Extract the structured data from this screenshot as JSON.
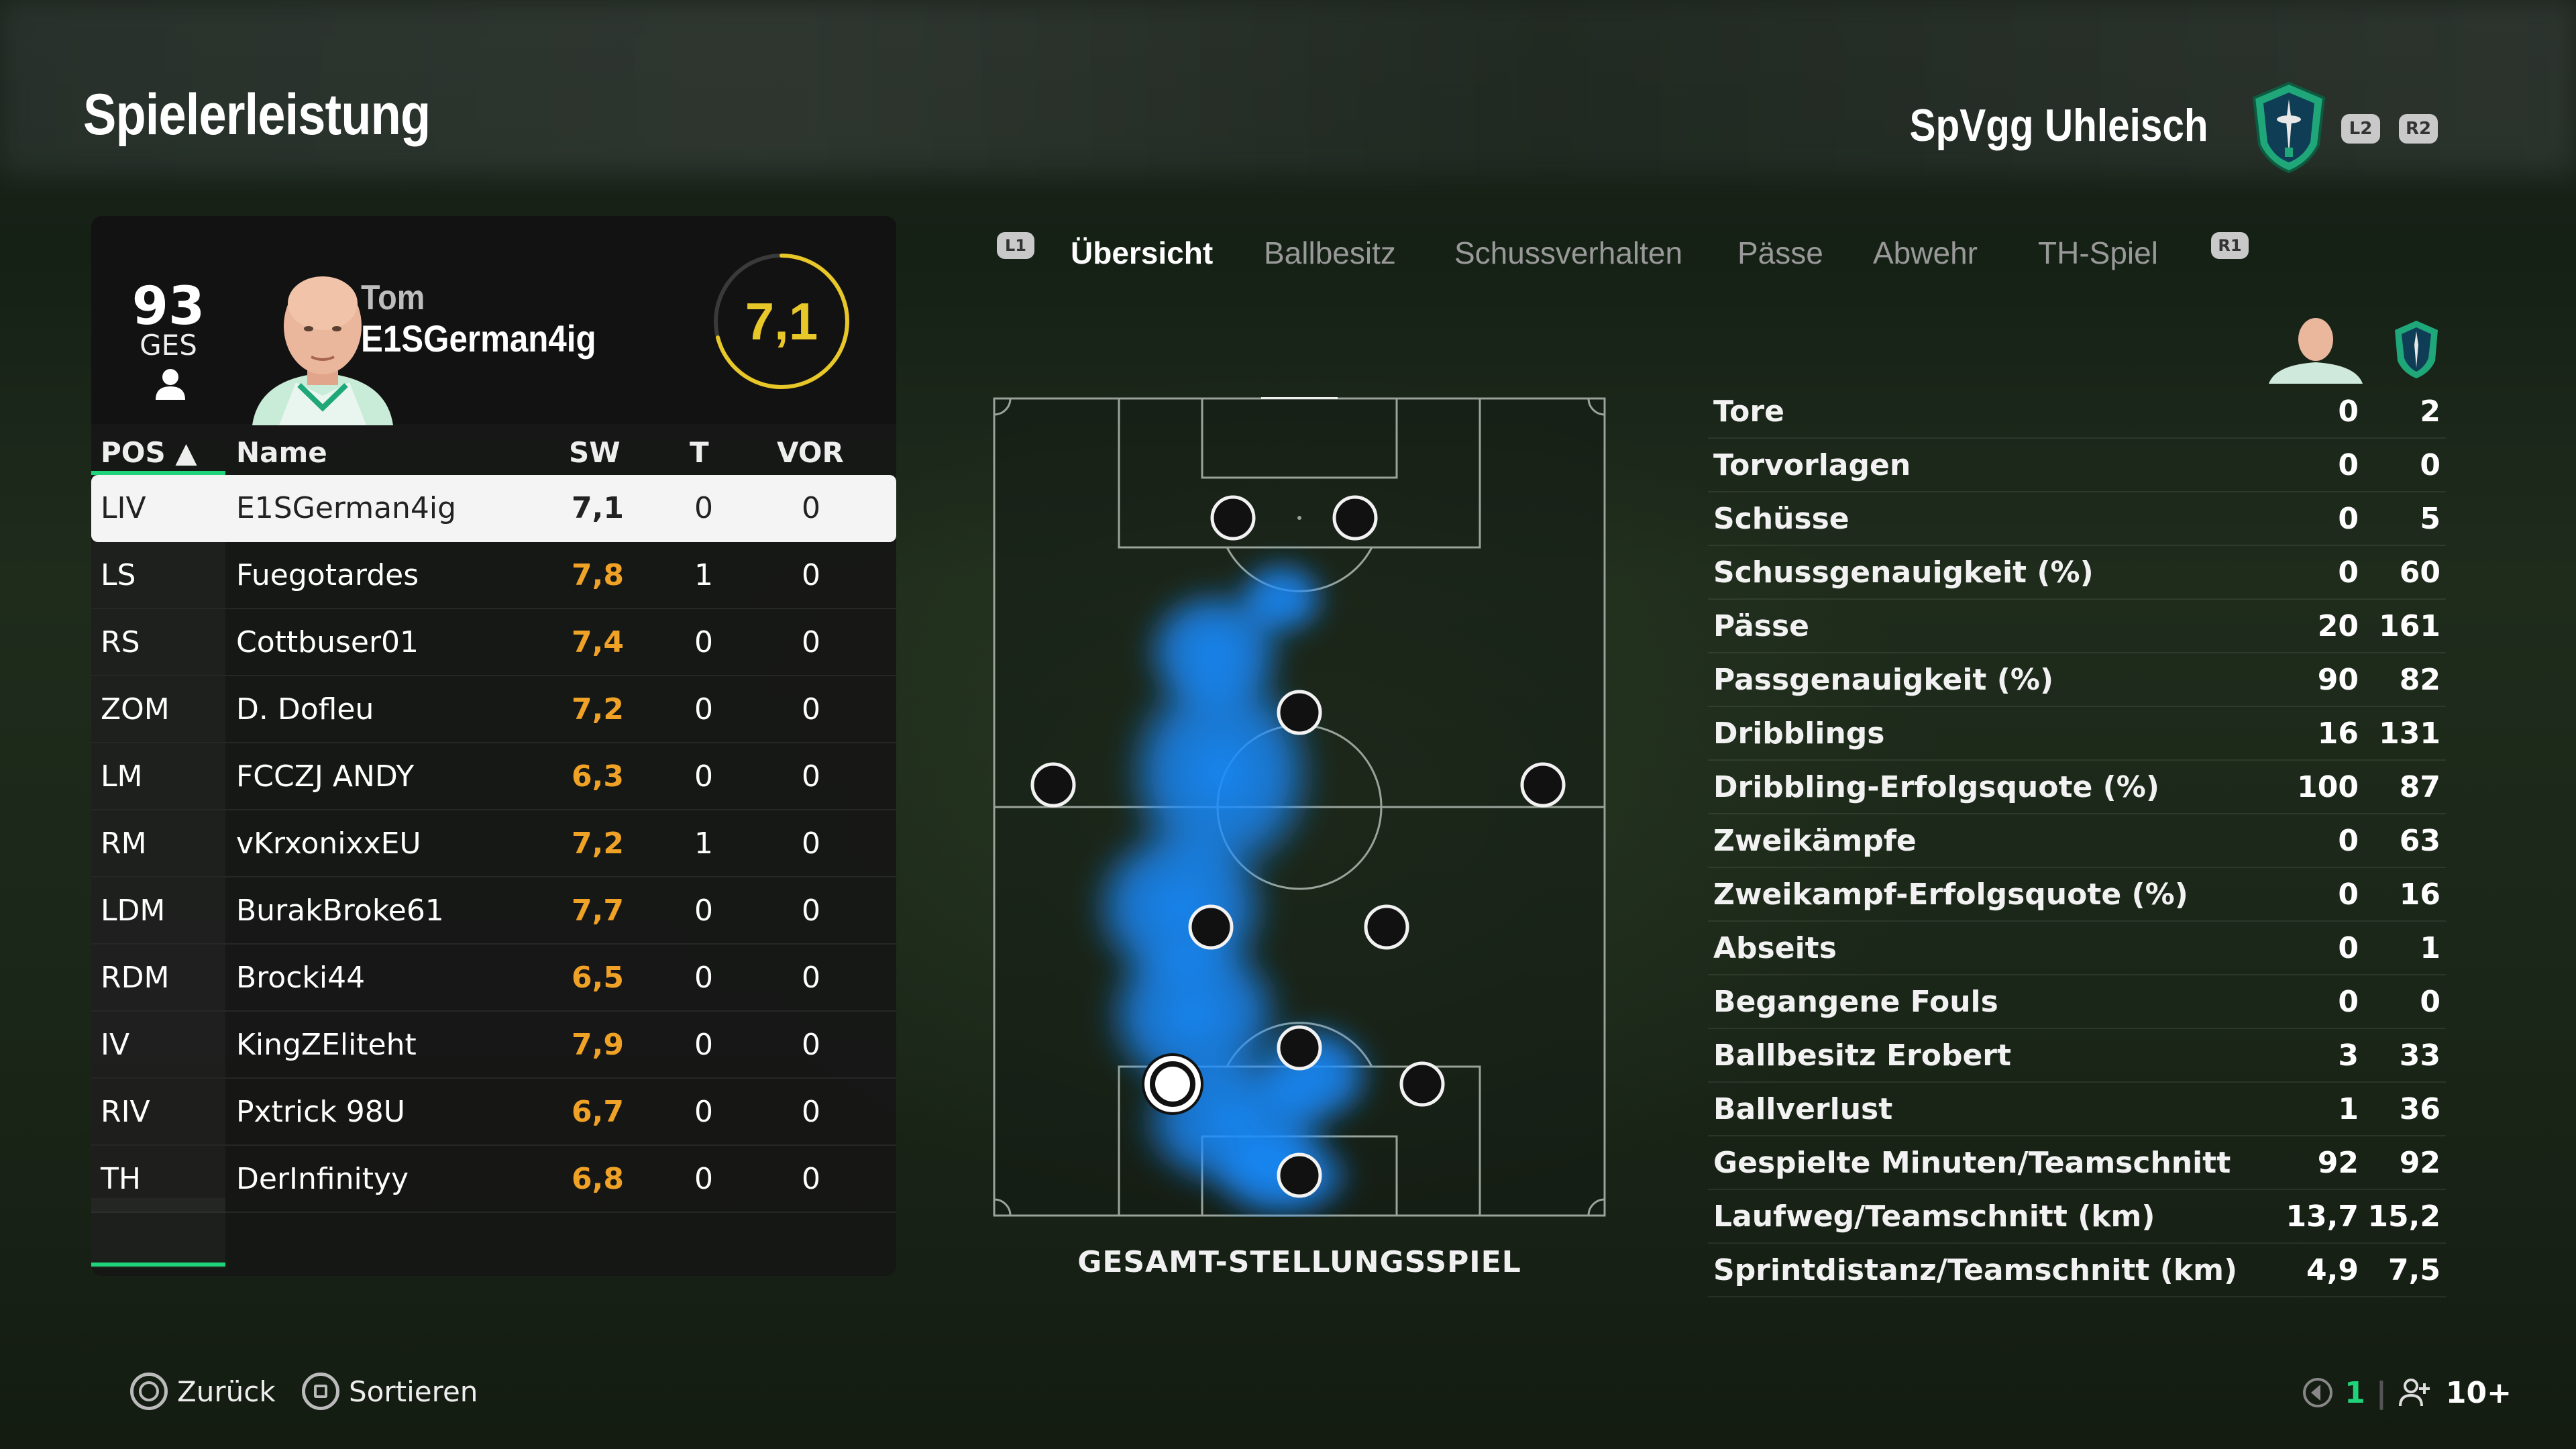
{
  "page_title": "Spielerleistung",
  "team": {
    "name": "SpVgg Uhleisch",
    "crest_icon": "club-crest-icon",
    "accent_color": "#1fa77a"
  },
  "header_buttons": {
    "l2": "L2",
    "r2": "R2"
  },
  "player": {
    "ges_value": "93",
    "ges_label": "GES",
    "first_name": "Tom",
    "last_name": "E1SGerman4ig",
    "rating": "7,1",
    "rating_color": "#e8c728"
  },
  "table": {
    "headers": {
      "pos": "POS ▲",
      "name": "Name",
      "sw": "SW",
      "t": "T",
      "vor": "VOR"
    },
    "rows": [
      {
        "pos": "LIV",
        "name": "E1SGerman4ig",
        "sw": "7,1",
        "t": "0",
        "vor": "0"
      },
      {
        "pos": "LS",
        "name": "Fuegotardes",
        "sw": "7,8",
        "t": "1",
        "vor": "0"
      },
      {
        "pos": "RS",
        "name": "Cottbuser01",
        "sw": "7,4",
        "t": "0",
        "vor": "0"
      },
      {
        "pos": "ZOM",
        "name": "D. Dofleu",
        "sw": "7,2",
        "t": "0",
        "vor": "0"
      },
      {
        "pos": "LM",
        "name": "FCCZJ ANDY",
        "sw": "6,3",
        "t": "0",
        "vor": "0"
      },
      {
        "pos": "RM",
        "name": "vKrxonixxEU",
        "sw": "7,2",
        "t": "1",
        "vor": "0"
      },
      {
        "pos": "LDM",
        "name": "BurakBroke61",
        "sw": "7,7",
        "t": "0",
        "vor": "0"
      },
      {
        "pos": "RDM",
        "name": "Brocki44",
        "sw": "6,5",
        "t": "0",
        "vor": "0"
      },
      {
        "pos": "IV",
        "name": "KingZEliteht",
        "sw": "7,9",
        "t": "0",
        "vor": "0"
      },
      {
        "pos": "RIV",
        "name": "Pxtrick 98U",
        "sw": "6,7",
        "t": "0",
        "vor": "0"
      },
      {
        "pos": "TH",
        "name": "DerInfinityy",
        "sw": "6,8",
        "t": "0",
        "vor": "0"
      }
    ]
  },
  "tabs": {
    "l1": "L1",
    "r1": "R1",
    "items": [
      "Übersicht",
      "Ballbesitz",
      "Schussverhalten",
      "Pässe",
      "Abwehr",
      "TH-Spiel"
    ]
  },
  "pitch": {
    "label": "GESAMT-STELLUNGSSPIEL",
    "heatmap_color": "#1a8cff"
  },
  "stats": [
    {
      "label": "Tore",
      "player": "0",
      "team": "2"
    },
    {
      "label": "Torvorlagen",
      "player": "0",
      "team": "0"
    },
    {
      "label": "Schüsse",
      "player": "0",
      "team": "5"
    },
    {
      "label": "Schussgenauigkeit (%)",
      "player": "0",
      "team": "60"
    },
    {
      "label": "Pässe",
      "player": "20",
      "team": "161"
    },
    {
      "label": "Passgenauigkeit (%)",
      "player": "90",
      "team": "82"
    },
    {
      "label": "Dribblings",
      "player": "16",
      "team": "131"
    },
    {
      "label": "Dribbling-Erfolgsquote (%)",
      "player": "100",
      "team": "87"
    },
    {
      "label": "Zweikämpfe",
      "player": "0",
      "team": "63"
    },
    {
      "label": "Zweikampf-Erfolgsquote (%)",
      "player": "0",
      "team": "16"
    },
    {
      "label": "Abseits",
      "player": "0",
      "team": "1"
    },
    {
      "label": "Begangene Fouls",
      "player": "0",
      "team": "0"
    },
    {
      "label": "Ballbesitz Erobert",
      "player": "3",
      "team": "33"
    },
    {
      "label": "Ballverlust",
      "player": "1",
      "team": "36"
    },
    {
      "label": "Gespielte Minuten/Teamschnitt",
      "player": "92",
      "team": "92"
    },
    {
      "label": "Laufweg/Teamschnitt (km)",
      "player": "13,7",
      "team": "15,2"
    },
    {
      "label": "Sprintdistanz/Teamschnitt (km)",
      "player": "4,9",
      "team": "7,5"
    }
  ],
  "footer": {
    "back_label": "Zurück",
    "sort_label": "Sortieren",
    "online_count": "1",
    "players_count": "10+"
  }
}
